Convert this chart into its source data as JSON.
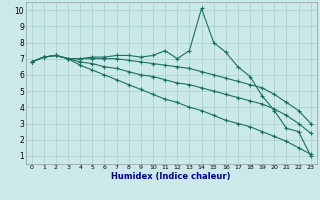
{
  "xlabel": "Humidex (Indice chaleur)",
  "xlim": [
    -0.5,
    23.5
  ],
  "ylim": [
    0.5,
    10.5
  ],
  "xticks": [
    0,
    1,
    2,
    3,
    4,
    5,
    6,
    7,
    8,
    9,
    10,
    11,
    12,
    13,
    14,
    15,
    16,
    17,
    18,
    19,
    20,
    21,
    22,
    23
  ],
  "yticks": [
    1,
    2,
    3,
    4,
    5,
    6,
    7,
    8,
    9,
    10
  ],
  "background_color": "#cce9e9",
  "grid_color": "#aad4d4",
  "line_color": "#1a7060",
  "lines": [
    {
      "x": [
        0,
        1,
        2,
        3,
        4,
        5,
        6,
        7,
        8,
        9,
        10,
        11,
        12,
        13,
        14,
        15,
        16,
        17,
        18,
        19,
        20,
        21,
        22,
        23
      ],
      "y": [
        6.8,
        7.1,
        7.2,
        7.0,
        7.0,
        7.1,
        7.1,
        7.2,
        7.2,
        7.1,
        7.2,
        7.5,
        7.0,
        7.5,
        10.1,
        8.0,
        7.4,
        6.5,
        5.9,
        4.7,
        3.8,
        2.7,
        2.5,
        1.0
      ]
    },
    {
      "x": [
        0,
        1,
        2,
        3,
        4,
        5,
        6,
        7,
        8,
        9,
        10,
        11,
        12,
        13,
        14,
        15,
        16,
        17,
        18,
        19,
        20,
        21,
        22,
        23
      ],
      "y": [
        6.8,
        7.1,
        7.2,
        7.0,
        7.0,
        7.0,
        7.0,
        7.0,
        6.9,
        6.8,
        6.7,
        6.6,
        6.5,
        6.4,
        6.2,
        6.0,
        5.8,
        5.6,
        5.4,
        5.2,
        4.8,
        4.3,
        3.8,
        3.0
      ]
    },
    {
      "x": [
        0,
        1,
        2,
        3,
        4,
        5,
        6,
        7,
        8,
        9,
        10,
        11,
        12,
        13,
        14,
        15,
        16,
        17,
        18,
        19,
        20,
        21,
        22,
        23
      ],
      "y": [
        6.8,
        7.1,
        7.2,
        7.0,
        6.8,
        6.7,
        6.5,
        6.4,
        6.2,
        6.0,
        5.9,
        5.7,
        5.5,
        5.4,
        5.2,
        5.0,
        4.8,
        4.6,
        4.4,
        4.2,
        3.9,
        3.5,
        3.0,
        2.4
      ]
    },
    {
      "x": [
        0,
        1,
        2,
        3,
        4,
        5,
        6,
        7,
        8,
        9,
        10,
        11,
        12,
        13,
        14,
        15,
        16,
        17,
        18,
        19,
        20,
        21,
        22,
        23
      ],
      "y": [
        6.8,
        7.1,
        7.2,
        7.0,
        6.6,
        6.3,
        6.0,
        5.7,
        5.4,
        5.1,
        4.8,
        4.5,
        4.3,
        4.0,
        3.8,
        3.5,
        3.2,
        3.0,
        2.8,
        2.5,
        2.2,
        1.9,
        1.5,
        1.1
      ]
    }
  ]
}
